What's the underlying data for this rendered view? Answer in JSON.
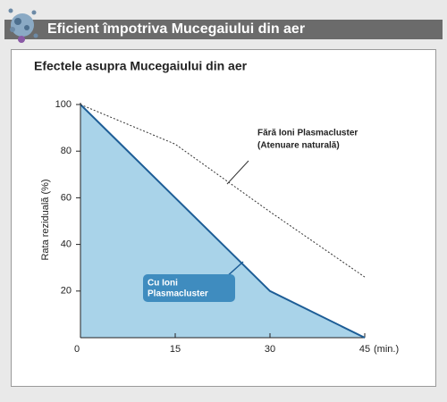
{
  "header": {
    "title": "Eficient împotriva Mucegaiului din aer"
  },
  "chart_data": {
    "type": "line",
    "title": "Efectele asupra Mucegaiului din aer",
    "ylabel": "Rata reziduală (%)",
    "xlabel": "(min.)",
    "x": [
      0,
      15,
      30,
      45
    ],
    "series": [
      {
        "name": [
          "Cu Ioni",
          "Plasmacluster"
        ],
        "color": "#1d5d96",
        "fill": "#a9d3e9",
        "dashed": false,
        "values": [
          100,
          60,
          20,
          0
        ]
      },
      {
        "name": [
          "Fără Ioni Plasmacluster",
          "(Atenuare naturală)"
        ],
        "color": "#333333",
        "dashed": true,
        "values": [
          100,
          83,
          54,
          26
        ]
      }
    ],
    "xlim": [
      0,
      45
    ],
    "xticks": [
      0,
      15,
      30,
      45
    ],
    "ylim": [
      0,
      100
    ],
    "yticks": [
      20,
      40,
      60,
      80,
      100
    ]
  }
}
